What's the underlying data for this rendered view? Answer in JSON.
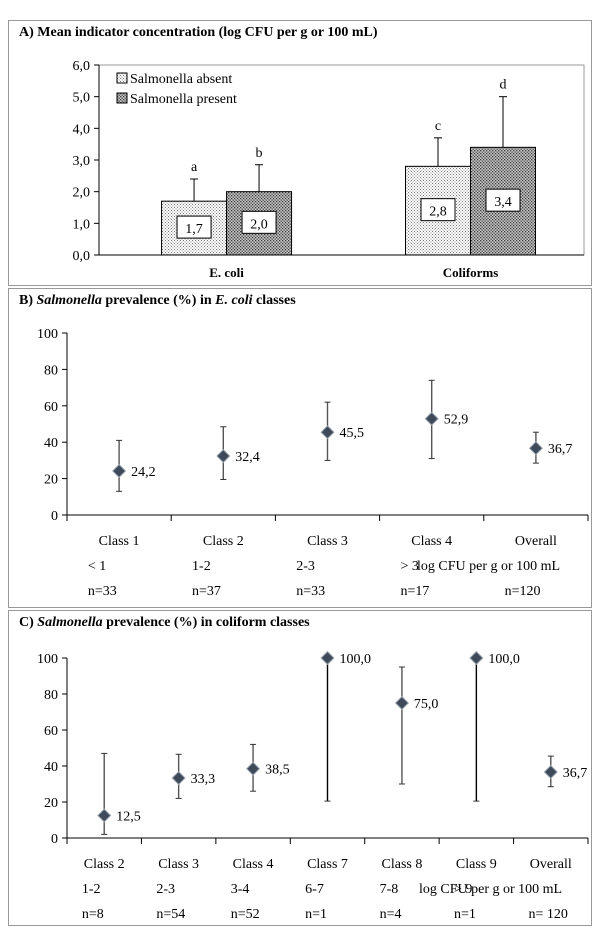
{
  "panels": {
    "a": {
      "title": "A) Mean indicator concentration (log CFU per g or 100 mL)"
    },
    "b": {
      "title_prefix": "B) ",
      "title_italic1": "Salmonella",
      "title_mid": " prevalence (%) in ",
      "title_italic2": "E. coli",
      "title_suffix": " classes"
    },
    "c": {
      "title_prefix": "C) ",
      "title_italic1": "Salmonella",
      "title_mid": " prevalence (%) in coliform classes"
    }
  },
  "chart_data": [
    {
      "id": "A",
      "type": "bar",
      "title": "A) Mean indicator concentration (log CFU per g or 100 mL)",
      "categories": [
        "E. coli",
        "Coliforms"
      ],
      "series": [
        {
          "name": "Salmonella absent",
          "values": [
            1.7,
            2.8
          ],
          "error_upper": [
            2.4,
            3.7
          ],
          "labels": [
            "1,7",
            "2,8"
          ],
          "letters": [
            "a",
            "c"
          ]
        },
        {
          "name": "Salmonella present",
          "values": [
            2.0,
            3.4
          ],
          "error_upper": [
            2.85,
            5.0
          ],
          "labels": [
            "2,0",
            "3,4"
          ],
          "letters": [
            "b",
            "d"
          ]
        }
      ],
      "yticks": [
        "0,0",
        "1,0",
        "2,0",
        "3,0",
        "4,0",
        "5,0",
        "6,0"
      ],
      "ylim": [
        0,
        6
      ],
      "legend": "top-left",
      "grid": false
    },
    {
      "id": "B",
      "type": "scatter",
      "title": "Salmonella prevalence (%) in E. coli classes",
      "points": [
        {
          "class": "Class 1",
          "range": "< 1",
          "n": "n=33",
          "value": 24.2,
          "label": "24,2",
          "low": 13,
          "high": 41
        },
        {
          "class": "Class 2",
          "range": "1-2",
          "n": "n=37",
          "value": 32.4,
          "label": "32,4",
          "low": 19.5,
          "high": 48.5
        },
        {
          "class": "Class 3",
          "range": "2-3",
          "n": "n=33",
          "value": 45.5,
          "label": "45,5",
          "low": 30,
          "high": 62
        },
        {
          "class": "Class 4",
          "range": "> 3",
          "n": "n=17",
          "value": 52.9,
          "label": "52,9",
          "low": 31,
          "high": 74
        },
        {
          "class": "Overall",
          "range": "",
          "n": "n=120",
          "value": 36.7,
          "label": "36,7",
          "low": 28.5,
          "high": 45.5
        }
      ],
      "unit_label": "log CFU per g or 100 mL",
      "yticks": [
        "0",
        "20",
        "40",
        "60",
        "80",
        "100"
      ],
      "ylim": [
        0,
        100
      ],
      "grid": false
    },
    {
      "id": "C",
      "type": "scatter",
      "title": "Salmonella prevalence (%) in coliform classes",
      "points": [
        {
          "class": "Class 2",
          "range": "1-2",
          "n": "n=8",
          "value": 12.5,
          "label": "12,5",
          "low": 2,
          "high": 47
        },
        {
          "class": "Class 3",
          "range": "2-3",
          "n": "n=54",
          "value": 33.3,
          "label": "33,3",
          "low": 22,
          "high": 46.5
        },
        {
          "class": "Class 4",
          "range": "3-4",
          "n": "n=52",
          "value": 38.5,
          "label": "38,5",
          "low": 26,
          "high": 52
        },
        {
          "class": "Class 7",
          "range": "6-7",
          "n": "n=1",
          "value": 100.0,
          "label": "100,0",
          "low": 20.5,
          "high": 100
        },
        {
          "class": "Class 8",
          "range": "7-8",
          "n": "n=4",
          "value": 75.0,
          "label": "75,0",
          "low": 30,
          "high": 95
        },
        {
          "class": "Class 9",
          "range": "> 9",
          "n": "n=1",
          "value": 100.0,
          "label": "100,0",
          "low": 20.5,
          "high": 100
        },
        {
          "class": "Overall",
          "range": "",
          "n": "n= 120",
          "value": 36.7,
          "label": "36,7",
          "low": 28.5,
          "high": 45.5
        }
      ],
      "unit_label": "log CFU per g or 100 mL",
      "yticks": [
        "0",
        "20",
        "40",
        "60",
        "80",
        "100"
      ],
      "ylim": [
        0,
        100
      ],
      "grid": false
    }
  ]
}
